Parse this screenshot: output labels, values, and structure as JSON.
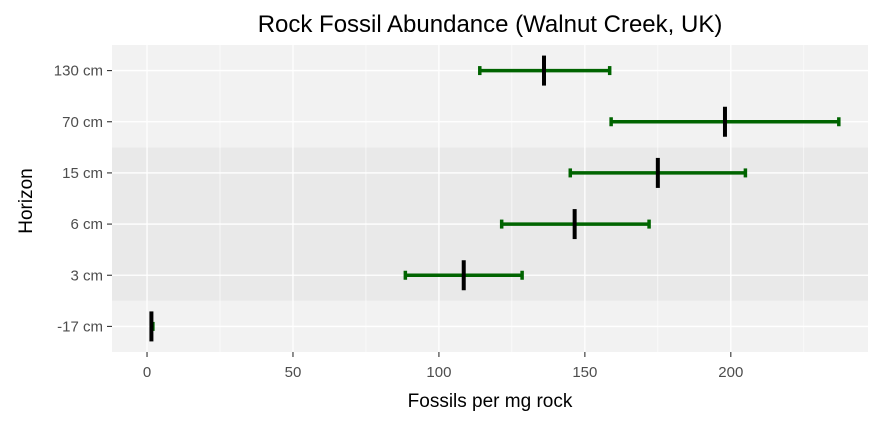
{
  "chart_data": {
    "type": "errorbar",
    "title": "Rock Fossil Abundance (Walnut Creek, UK)",
    "xlabel": "Fossils per mg rock",
    "ylabel": "Horizon",
    "xlim": [
      -12,
      247
    ],
    "x_ticks": [
      0,
      50,
      100,
      150,
      200
    ],
    "grid": true,
    "categories": [
      "-17 cm",
      "3 cm",
      "6 cm",
      "15 cm",
      "70 cm",
      "130 cm"
    ],
    "points": [
      {
        "label": "-17 cm",
        "value": 1.5,
        "low": 1.5,
        "high": 2
      },
      {
        "label": "3 cm",
        "value": 108.5,
        "low": 88.5,
        "high": 128.5
      },
      {
        "label": "6 cm",
        "value": 146.5,
        "low": 121.5,
        "high": 172
      },
      {
        "label": "15 cm",
        "value": 175,
        "low": 145,
        "high": 205
      },
      {
        "label": "70 cm",
        "value": 198,
        "low": 159,
        "high": 237
      },
      {
        "label": "130 cm",
        "value": 136,
        "low": 114,
        "high": 158.5
      }
    ],
    "shaded_bands": [
      {
        "from": "-17 cm",
        "to": "-17 cm",
        "color": "#f2f2f2"
      },
      {
        "from": "3 cm",
        "to": "15 cm",
        "color": "#e9e9e9"
      },
      {
        "from": "70 cm",
        "to": "130 cm",
        "color": "#f2f2f2"
      }
    ],
    "colors": {
      "errorbar": "#006400",
      "point": "#000000",
      "gridline": "#ffffff",
      "axis_text": "#4d4d4d"
    }
  }
}
